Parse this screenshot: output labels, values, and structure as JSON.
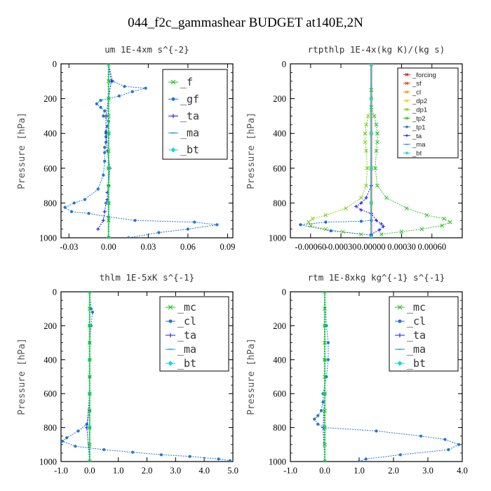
{
  "title": "044_f2c_gammashear  BUDGET at140E,2N",
  "chart_data": [
    {
      "type": "line",
      "title": "um  1E-4xm s^{-2}",
      "ylabel": "Pressure [hPa]",
      "xlim": [
        -0.036,
        0.094
      ],
      "ylim": [
        1000,
        0
      ],
      "xticks": [
        -0.03,
        0.0,
        0.03,
        0.06,
        0.09
      ],
      "xtick_labels": [
        "-0.03",
        "0.00",
        "0.03",
        "0.06",
        "0.09"
      ],
      "yticks": [
        0,
        200,
        400,
        600,
        800,
        1000
      ],
      "ytick_labels": [
        "0",
        "200",
        "400",
        "600",
        "800",
        "1000"
      ],
      "grid": false,
      "legend_position": "top-right",
      "series": [
        {
          "name": "_gf",
          "color": "#1f77d4",
          "marker": "dot",
          "x": [
            0.0,
            0.003,
            0.012,
            0.028,
            0.018,
            0.008,
            -0.006,
            -0.009,
            -0.006,
            -0.003,
            -0.004,
            0.0,
            -0.001,
            -0.002,
            -0.002,
            -0.002,
            -0.003,
            -0.003,
            -0.003,
            -0.004,
            -0.008,
            -0.018,
            -0.026,
            -0.033,
            -0.028,
            -0.015,
            0.0,
            0.02,
            0.065,
            0.082,
            0.06,
            0.038,
            0.015
          ],
          "y": [
            0,
            100,
            130,
            140,
            160,
            185,
            210,
            230,
            250,
            270,
            300,
            330,
            360,
            390,
            420,
            450,
            480,
            510,
            560,
            640,
            720,
            780,
            800,
            825,
            850,
            860,
            880,
            900,
            910,
            925,
            950,
            970,
            1000
          ]
        },
        {
          "name": "_ta",
          "color": "#1a1aff",
          "marker": "plus",
          "x": [
            0.0,
            0.002,
            0.0,
            -0.002,
            -0.002,
            -0.001,
            0.001,
            0.0,
            -0.001,
            -0.001,
            -0.002,
            -0.003,
            -0.004,
            -0.008
          ],
          "y": [
            0,
            100,
            200,
            300,
            400,
            500,
            600,
            700,
            740,
            780,
            800,
            850,
            900,
            950
          ]
        },
        {
          "name": "_ma",
          "color": "#0a9bd4",
          "marker": "dash",
          "x": [
            0.0,
            0.0,
            0.0,
            0.0,
            0.0,
            0.0
          ],
          "y": [
            0,
            200,
            400,
            600,
            800,
            1000
          ]
        },
        {
          "name": "_bt",
          "color": "#18d6e6",
          "marker": "diamond",
          "x": [
            0.0,
            0.0,
            0.0,
            0.0,
            0.0,
            0.0
          ],
          "y": [
            0,
            200,
            400,
            600,
            800,
            1000
          ]
        },
        {
          "name": "_f",
          "color": "#22c422",
          "marker": "x",
          "x": [
            0.0,
            0.0,
            0.0,
            0.0,
            0.0,
            0.0,
            0.0,
            0.0,
            0.0,
            0.0,
            0.0
          ],
          "y": [
            0,
            100,
            200,
            300,
            400,
            500,
            600,
            700,
            800,
            900,
            1000
          ]
        }
      ]
    },
    {
      "type": "line",
      "title": "rtpthlp  1E-4x(kg K)/(kg s)",
      "ylabel": "Pressure [hPa]",
      "xlim": [
        -0.0008,
        0.0009
      ],
      "ylim": [
        1000,
        0
      ],
      "xticks": [
        -0.0006,
        -0.0003,
        0.0,
        0.0003,
        0.0006
      ],
      "xtick_labels": [
        "-0.00060",
        "-0.00030",
        "0.00000",
        "0.00030",
        "0.00060"
      ],
      "yticks": [
        0,
        200,
        400,
        600,
        800,
        1000
      ],
      "ytick_labels": [
        "0",
        "200",
        "400",
        "600",
        "800",
        "1000"
      ],
      "grid": false,
      "legend_position": "top-right",
      "series": [
        {
          "name": "_forcing",
          "color": "#d42222",
          "marker": "x",
          "x": [
            0,
            0,
            0,
            0,
            0,
            0
          ],
          "y": [
            0,
            200,
            400,
            600,
            800,
            1000
          ]
        },
        {
          "name": "_sf",
          "color": "#e83a1a",
          "marker": "x",
          "x": [
            0,
            0,
            0,
            0,
            0,
            0
          ],
          "y": [
            0,
            200,
            400,
            600,
            800,
            1000
          ]
        },
        {
          "name": "_cl",
          "color": "#f09a1a",
          "marker": "x",
          "x": [
            0,
            0,
            0,
            0,
            0,
            0
          ],
          "y": [
            0,
            200,
            400,
            600,
            800,
            1000
          ]
        },
        {
          "name": "_dp2",
          "color": "#e8d41a",
          "marker": "x",
          "x": [
            0,
            0,
            0,
            0,
            0,
            0
          ],
          "y": [
            0,
            200,
            400,
            600,
            800,
            1000
          ]
        },
        {
          "name": "_dp1",
          "color": "#7ad41a",
          "marker": "x",
          "x": [
            0.0,
            0.0,
            0.0,
            -3e-05,
            -5e-05,
            -6e-05,
            -6e-05,
            -5e-05,
            -4e-05,
            -5e-05,
            -0.0001,
            -0.00025,
            -0.00045,
            -0.00058,
            -0.00062,
            -0.0006,
            -0.00045,
            -0.00028,
            -0.0001
          ],
          "y": [
            0,
            150,
            250,
            300,
            350,
            400,
            450,
            500,
            600,
            700,
            770,
            830,
            870,
            890,
            910,
            930,
            950,
            965,
            980
          ]
        },
        {
          "name": "_tp2",
          "color": "#2fc42f",
          "marker": "x",
          "x": [
            0.0,
            0.0,
            0.0,
            3e-05,
            5e-05,
            6e-05,
            6e-05,
            5e-05,
            4e-05,
            6e-05,
            0.00015,
            0.00035,
            0.00055,
            0.00072,
            0.00078,
            0.0007,
            0.0005,
            0.0003,
            0.0001
          ],
          "y": [
            0,
            150,
            250,
            300,
            350,
            400,
            450,
            500,
            600,
            700,
            770,
            830,
            870,
            890,
            910,
            930,
            950,
            965,
            980
          ]
        },
        {
          "name": "_tp1",
          "color": "#1a6fd4",
          "marker": "dot",
          "x": [
            0.0,
            -0.0001,
            -0.00045,
            -0.0007,
            -0.0004,
            0.0
          ],
          "y": [
            900,
            905,
            910,
            925,
            960,
            985
          ]
        },
        {
          "name": "_ta",
          "color": "#1a1aff",
          "marker": "plus",
          "x": [
            0.0,
            0.0,
            -5e-05,
            -0.0001,
            -0.00015,
            -0.0001,
            0.0,
            5e-05,
            0.0001,
            0.00012,
            8e-05,
            0.0
          ],
          "y": [
            0,
            700,
            770,
            800,
            820,
            840,
            860,
            900,
            920,
            935,
            955,
            980
          ]
        },
        {
          "name": "_ma",
          "color": "#0a9bd4",
          "marker": "dash",
          "x": [
            0,
            0,
            0,
            0,
            0,
            0
          ],
          "y": [
            0,
            200,
            400,
            600,
            800,
            1000
          ]
        },
        {
          "name": "_bt",
          "color": "#18d6e6",
          "marker": "diamond",
          "x": [
            0,
            0,
            0,
            0,
            0,
            0
          ],
          "y": [
            0,
            200,
            400,
            600,
            800,
            1000
          ]
        }
      ]
    },
    {
      "type": "line",
      "title": "thlm  1E-5xK s^{-1}",
      "ylabel": "Pressure [hPa]",
      "xlim": [
        -1.0,
        5.0
      ],
      "ylim": [
        1000,
        0
      ],
      "xticks": [
        -1.0,
        0.0,
        1.0,
        2.0,
        3.0,
        4.0,
        5.0
      ],
      "xtick_labels": [
        "-1.0",
        "0.0",
        "1.0",
        "2.0",
        "3.0",
        "4.0",
        "5.0"
      ],
      "yticks": [
        0,
        200,
        400,
        600,
        800,
        1000
      ],
      "ytick_labels": [
        "0",
        "200",
        "400",
        "600",
        "800",
        "1000"
      ],
      "grid": false,
      "legend_position": "top-right",
      "series": [
        {
          "name": "_cl",
          "color": "#1f77d4",
          "marker": "dot",
          "x": [
            0.0,
            0.05,
            0.1,
            0.05,
            0.0,
            0.0,
            0.0,
            0.0,
            0.0,
            -0.1,
            -0.4,
            -0.8,
            -0.95,
            -0.5,
            0.5,
            1.5,
            2.5,
            3.5,
            4.5,
            4.9
          ],
          "y": [
            0,
            100,
            120,
            200,
            300,
            400,
            500,
            600,
            700,
            780,
            820,
            860,
            880,
            910,
            930,
            945,
            960,
            970,
            985,
            995
          ]
        },
        {
          "name": "_ta",
          "color": "#1a1aff",
          "marker": "plus",
          "x": [
            0.0,
            0.0,
            0.0,
            0.0,
            -0.1,
            0.0
          ],
          "y": [
            0,
            200,
            400,
            600,
            800,
            1000
          ]
        },
        {
          "name": "_ma",
          "color": "#0a9bd4",
          "marker": "dash",
          "x": [
            0,
            0,
            0,
            0,
            0,
            0
          ],
          "y": [
            0,
            200,
            400,
            600,
            800,
            1000
          ]
        },
        {
          "name": "_bt",
          "color": "#18d6e6",
          "marker": "diamond",
          "x": [
            0,
            0,
            0,
            0,
            0,
            0
          ],
          "y": [
            0,
            200,
            400,
            600,
            800,
            1000
          ]
        },
        {
          "name": "_mc",
          "color": "#22c422",
          "marker": "x",
          "x": [
            0,
            0,
            0,
            0,
            0,
            0,
            0,
            0,
            0,
            0,
            0
          ],
          "y": [
            0,
            100,
            200,
            300,
            400,
            500,
            600,
            700,
            800,
            900,
            1000
          ]
        }
      ]
    },
    {
      "type": "line",
      "title": "rtm  1E-8xkg kg^{-1} s^{-1}",
      "ylabel": "Pressure [hPa]",
      "xlim": [
        -1.0,
        4.0
      ],
      "ylim": [
        1000,
        0
      ],
      "xticks": [
        -1.0,
        0.0,
        1.0,
        2.0,
        3.0,
        4.0
      ],
      "xtick_labels": [
        "-1.0",
        "0.0",
        "1.0",
        "2.0",
        "3.0",
        "4.0"
      ],
      "yticks": [
        0,
        200,
        400,
        600,
        800,
        1000
      ],
      "ytick_labels": [
        "0",
        "200",
        "400",
        "600",
        "800",
        "1000"
      ],
      "grid": false,
      "legend_position": "top-right",
      "series": [
        {
          "name": "_cl",
          "color": "#1f77d4",
          "marker": "dot",
          "x": [
            0.0,
            0.05,
            0.1,
            0.1,
            0.05,
            -0.05,
            -0.05,
            -0.1,
            -0.2,
            -0.3,
            -0.2,
            0.0,
            1.5,
            2.8,
            3.5,
            3.9,
            3.6,
            2.2,
            1.2,
            1.0
          ],
          "y": [
            0,
            200,
            300,
            400,
            500,
            600,
            650,
            700,
            730,
            750,
            780,
            800,
            820,
            850,
            870,
            900,
            930,
            960,
            985,
            1000
          ]
        },
        {
          "name": "_ta",
          "color": "#1a1aff",
          "marker": "plus",
          "x": [
            0.0,
            0.0,
            0.0,
            0.0,
            -0.05,
            0.0
          ],
          "y": [
            0,
            200,
            400,
            600,
            800,
            1000
          ]
        },
        {
          "name": "_ma",
          "color": "#0a9bd4",
          "marker": "dash",
          "x": [
            0,
            0,
            0,
            0,
            0,
            0
          ],
          "y": [
            0,
            200,
            400,
            600,
            800,
            1000
          ]
        },
        {
          "name": "_bt",
          "color": "#18d6e6",
          "marker": "diamond",
          "x": [
            0,
            0,
            0,
            0,
            0,
            0
          ],
          "y": [
            0,
            200,
            400,
            600,
            800,
            1000
          ]
        },
        {
          "name": "_mc",
          "color": "#22c422",
          "marker": "x",
          "x": [
            0,
            0,
            0,
            0,
            0,
            0,
            0,
            0,
            0,
            0,
            0
          ],
          "y": [
            0,
            100,
            200,
            300,
            400,
            500,
            600,
            700,
            800,
            900,
            1000
          ]
        }
      ]
    }
  ]
}
